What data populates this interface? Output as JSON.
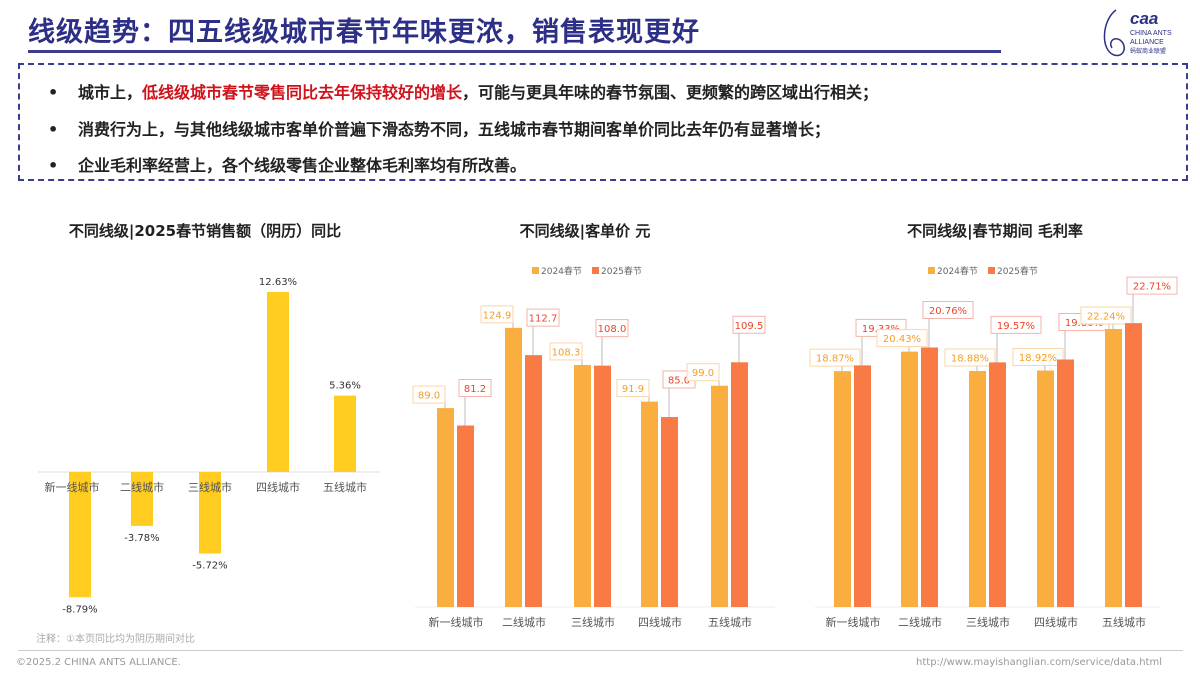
{
  "title": "线级趋势：四五线级城市春节年味更浓，销售表现更好",
  "logo": {
    "text": "CAA",
    "sub1": "CHINA ANTS",
    "sub2": "ALLIANCE",
    "sub3": "蚂蚁商业联盟"
  },
  "bullets": [
    {
      "prefix": "城市上，",
      "highlight": "低线级城市春节零售同比去年保持较好的增长",
      "suffix": "，可能与更具年味的春节氛围、更频繁的跨区域出行相关；"
    },
    {
      "prefix": "消费行为上，与其他线级城市客单价普遍下滑态势不同，五线城市春节期间客单价同比去年仍有显著增长；",
      "highlight": "",
      "suffix": ""
    },
    {
      "prefix": "企业毛利率经营上，各个线级零售企业整体毛利率均有所改善。",
      "highlight": "",
      "suffix": ""
    }
  ],
  "bullet_symbol": "•",
  "colors": {
    "title": "#2d2f86",
    "highlight": "#d0121b",
    "yoy_bar": "#ffcc1f",
    "series_2024": "#fbae40",
    "series_2025": "#f97a44"
  },
  "chart_data": [
    {
      "type": "bar",
      "title": "不同线级|2025春节销售额（阴历）同比",
      "categories": [
        "新一线城市",
        "二线城市",
        "三线城市",
        "四线城市",
        "五线城市"
      ],
      "values": [
        -8.79,
        -3.78,
        -5.72,
        12.63,
        5.36
      ],
      "labels": [
        "-8.79%",
        "-3.78%",
        "-5.72%",
        "12.63%",
        "5.36%"
      ],
      "unit": "%",
      "ylim": [
        -9,
        13
      ],
      "grid": false,
      "legend": "none"
    },
    {
      "type": "bar",
      "title": "不同线级|客单价 元",
      "categories": [
        "新一线城市",
        "二线城市",
        "三线城市",
        "四线城市",
        "五线城市"
      ],
      "series": [
        {
          "name": "2024春节",
          "values": [
            89.0,
            124.9,
            108.3,
            91.9,
            99.0
          ],
          "labels": [
            "89.0",
            "124.9",
            "108.3",
            "91.9",
            "99.0"
          ]
        },
        {
          "name": "2025春节",
          "values": [
            81.2,
            112.7,
            108.0,
            85.0,
            109.5
          ],
          "labels": [
            "81.2",
            "112.7",
            "108.0",
            "85.0",
            "109.5"
          ]
        }
      ],
      "ylim": [
        0,
        135
      ],
      "grid": false,
      "legend": "top"
    },
    {
      "type": "bar",
      "title": "不同线级|春节期间 毛利率",
      "categories": [
        "新一线城市",
        "二线城市",
        "三线城市",
        "四线城市",
        "五线城市"
      ],
      "series": [
        {
          "name": "2024春节",
          "values": [
            18.87,
            20.43,
            18.88,
            18.92,
            22.24
          ],
          "labels": [
            "18.87%",
            "20.43%",
            "18.88%",
            "18.92%",
            "22.24%"
          ]
        },
        {
          "name": "2025春节",
          "values": [
            19.33,
            20.76,
            19.57,
            19.8,
            22.71
          ],
          "labels": [
            "19.33%",
            "20.76%",
            "19.57%",
            "19.80%",
            "22.71%"
          ]
        }
      ],
      "unit": "%",
      "ylim": [
        0,
        24
      ],
      "grid": false,
      "legend": "top"
    }
  ],
  "note": "注释：①本页同比均为阴历期间对比",
  "footer": {
    "copyright": "©2025.2 CHINA ANTS ALLIANCE.",
    "url": "http://www.mayishanglian.com/service/data.html"
  }
}
